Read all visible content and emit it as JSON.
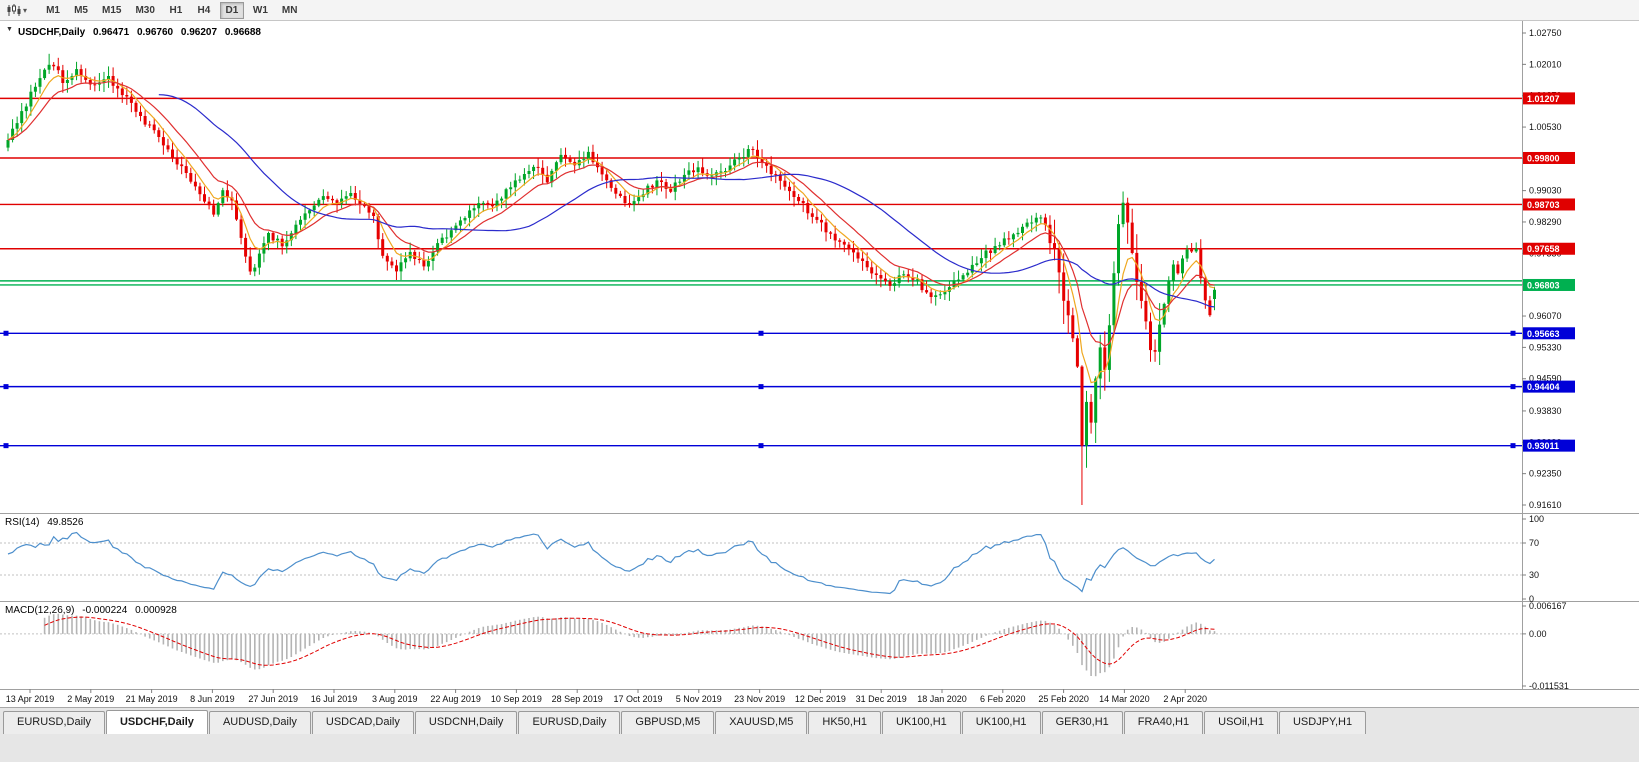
{
  "toolbar": {
    "chart_type_icon": "candlestick-chart-icon",
    "timeframes": [
      {
        "label": "M1",
        "active": false
      },
      {
        "label": "M5",
        "active": false
      },
      {
        "label": "M15",
        "active": false
      },
      {
        "label": "M30",
        "active": false
      },
      {
        "label": "H1",
        "active": false
      },
      {
        "label": "H4",
        "active": false
      },
      {
        "label": "D1",
        "active": true
      },
      {
        "label": "W1",
        "active": false
      },
      {
        "label": "MN",
        "active": false
      }
    ]
  },
  "chart": {
    "dropdown_arrow": "▼",
    "symbol_title": "USDCHF,Daily",
    "open": "0.96471",
    "high": "0.96760",
    "low": "0.96207",
    "close": "0.96688"
  },
  "rsi_panel": {
    "title": "RSI(14)",
    "value": "49.8526",
    "axis_labels": [
      "100",
      "70",
      "30",
      "0"
    ],
    "levels": [
      70,
      30
    ]
  },
  "macd_panel": {
    "title": "MACD(12,26,9)",
    "main_value": "-0.000224",
    "signal_value": "0.000928",
    "axis_labels": [
      "0.006167",
      "0.00",
      "-0.011531"
    ]
  },
  "chart_data": {
    "type": "candlestick",
    "symbol": "USDCHF",
    "timeframe": "Daily",
    "x_labels": [
      "13 Apr 2019",
      "2 May 2019",
      "21 May 2019",
      "8 Jun 2019",
      "27 Jun 2019",
      "16 Jul 2019",
      "3 Aug 2019",
      "22 Aug 2019",
      "10 Sep 2019",
      "28 Sep 2019",
      "17 Oct 2019",
      "5 Nov 2019",
      "23 Nov 2019",
      "12 Dec 2019",
      "31 Dec 2019",
      "18 Jan 2020",
      "6 Feb 2020",
      "25 Feb 2020",
      "14 Mar 2020",
      "2 Apr 2020"
    ],
    "y_axis_ticks": [
      "1.02750",
      "1.02010",
      "1.01270",
      "1.00530",
      "0.99790",
      "0.99030",
      "0.98290",
      "0.97550",
      "0.96810",
      "0.96070",
      "0.95330",
      "0.94590",
      "0.93830",
      "0.93090",
      "0.92350",
      "0.91610"
    ],
    "y_axis_range": [
      0.9161,
      1.0275
    ],
    "horizontal_levels": [
      {
        "price": 1.01207,
        "label": "1.01207",
        "color": "#e00000",
        "labeled": true,
        "handles": false
      },
      {
        "price": 0.998,
        "label": "0.99800",
        "color": "#e00000",
        "labeled": true,
        "handles": false
      },
      {
        "price": 0.98703,
        "label": "0.98703",
        "color": "#e00000",
        "labeled": true,
        "handles": false
      },
      {
        "price": 0.97658,
        "label": "0.97658",
        "color": "#e00000",
        "labeled": true,
        "handles": false
      },
      {
        "price": 0.969,
        "label": "",
        "color": "#00b050",
        "labeled": false,
        "handles": false
      },
      {
        "price": 0.96803,
        "label": "0.96803",
        "color": "#00b050",
        "labeled": true,
        "handles": false
      },
      {
        "price": 0.95663,
        "label": "0.95663",
        "color": "#0000d8",
        "labeled": true,
        "handles": true
      },
      {
        "price": 0.94404,
        "label": "0.94404",
        "color": "#0000d8",
        "labeled": true,
        "handles": true
      },
      {
        "price": 0.93011,
        "label": "0.93011",
        "color": "#0000d8",
        "labeled": true,
        "handles": true
      }
    ],
    "candle_count": 265,
    "close_path_anchors": [
      [
        0,
        1.003
      ],
      [
        3,
        1.009
      ],
      [
        6,
        1.015
      ],
      [
        9,
        1.0205
      ],
      [
        12,
        1.0165
      ],
      [
        15,
        1.019
      ],
      [
        18,
        1.015
      ],
      [
        22,
        1.0168
      ],
      [
        25,
        1.0132
      ],
      [
        27,
        1.0105
      ],
      [
        30,
        1.0065
      ],
      [
        33,
        1.003
      ],
      [
        36,
        0.9985
      ],
      [
        39,
        0.994
      ],
      [
        42,
        0.989
      ],
      [
        45,
        0.9852
      ],
      [
        47,
        0.9905
      ],
      [
        49,
        0.9878
      ],
      [
        51,
        0.979
      ],
      [
        53,
        0.9706
      ],
      [
        55,
        0.9748
      ],
      [
        57,
        0.98
      ],
      [
        60,
        0.9776
      ],
      [
        63,
        0.982
      ],
      [
        66,
        0.9858
      ],
      [
        69,
        0.9895
      ],
      [
        72,
        0.987
      ],
      [
        75,
        0.99
      ],
      [
        78,
        0.9862
      ],
      [
        80,
        0.9836
      ],
      [
        82,
        0.9752
      ],
      [
        85,
        0.9716
      ],
      [
        88,
        0.976
      ],
      [
        91,
        0.9722
      ],
      [
        94,
        0.9775
      ],
      [
        97,
        0.981
      ],
      [
        100,
        0.9845
      ],
      [
        103,
        0.988
      ],
      [
        106,
        0.9862
      ],
      [
        109,
        0.99
      ],
      [
        112,
        0.9935
      ],
      [
        115,
        0.9962
      ],
      [
        118,
        0.9926
      ],
      [
        121,
        0.9985
      ],
      [
        124,
        0.9958
      ],
      [
        127,
        0.9988
      ],
      [
        130,
        0.994
      ],
      [
        133,
        0.9896
      ],
      [
        136,
        0.9866
      ],
      [
        139,
        0.99
      ],
      [
        142,
        0.9925
      ],
      [
        145,
        0.9904
      ],
      [
        148,
        0.9938
      ],
      [
        151,
        0.996
      ],
      [
        154,
        0.9932
      ],
      [
        157,
        0.9956
      ],
      [
        160,
        0.9984
      ],
      [
        163,
        1.0
      ],
      [
        166,
        0.9958
      ],
      [
        169,
        0.993
      ],
      [
        172,
        0.9894
      ],
      [
        175,
        0.9856
      ],
      [
        178,
        0.9822
      ],
      [
        181,
        0.979
      ],
      [
        184,
        0.9762
      ],
      [
        187,
        0.9736
      ],
      [
        190,
        0.9702
      ],
      [
        193,
        0.9676
      ],
      [
        196,
        0.9712
      ],
      [
        199,
        0.9688
      ],
      [
        202,
        0.9648
      ],
      [
        205,
        0.9668
      ],
      [
        208,
        0.9692
      ],
      [
        211,
        0.9722
      ],
      [
        214,
        0.9755
      ],
      [
        217,
        0.9778
      ],
      [
        220,
        0.9798
      ],
      [
        223,
        0.9822
      ],
      [
        226,
        0.9842
      ],
      [
        228,
        0.9795
      ],
      [
        230,
        0.9718
      ],
      [
        231,
        0.9656
      ],
      [
        232,
        0.96
      ],
      [
        233,
        0.955
      ],
      [
        234,
        0.948
      ],
      [
        235,
        0.931
      ],
      [
        236,
        0.942
      ],
      [
        237,
        0.9362
      ],
      [
        238,
        0.945
      ],
      [
        239,
        0.953
      ],
      [
        240,
        0.9482
      ],
      [
        241,
        0.96
      ],
      [
        242,
        0.972
      ],
      [
        243,
        0.9812
      ],
      [
        244,
        0.988
      ],
      [
        245,
        0.984
      ],
      [
        246,
        0.9752
      ],
      [
        247,
        0.969
      ],
      [
        248,
        0.9632
      ],
      [
        249,
        0.9582
      ],
      [
        250,
        0.954
      ],
      [
        251,
        0.9526
      ],
      [
        252,
        0.958
      ],
      [
        253,
        0.964
      ],
      [
        254,
        0.969
      ],
      [
        255,
        0.973
      ],
      [
        256,
        0.9702
      ],
      [
        257,
        0.974
      ],
      [
        258,
        0.977
      ],
      [
        259,
        0.9756
      ],
      [
        260,
        0.9772
      ],
      [
        261,
        0.97
      ],
      [
        262,
        0.9642
      ],
      [
        263,
        0.9616
      ],
      [
        264,
        0.9669
      ]
    ],
    "forced_last_candle": {
      "open": 0.96471,
      "high": 0.9676,
      "low": 0.96207,
      "close": 0.96688
    },
    "forced_points": {
      "deep_low_index": 235,
      "deep_low": 0.9161,
      "spike_high_index": 244,
      "spike_high": 0.9901,
      "early_high_index": 9,
      "early_high": 1.0226
    },
    "moving_averages": [
      {
        "kind": "ema",
        "period": 6,
        "color": "#efa820"
      },
      {
        "kind": "ema",
        "period": 13,
        "color": "#e03030"
      },
      {
        "kind": "sma",
        "period": 34,
        "color": "#2b2bcc"
      }
    ],
    "colors": {
      "up": "#00a628",
      "down": "#e60000",
      "histogram": "#b4b4b4",
      "signal": "#e00000",
      "rsi_line": "#4d8fcc"
    }
  },
  "tabs": [
    {
      "label": "EURUSD,Daily",
      "active": false
    },
    {
      "label": "USDCHF,Daily",
      "active": true
    },
    {
      "label": "AUDUSD,Daily",
      "active": false
    },
    {
      "label": "USDCAD,Daily",
      "active": false
    },
    {
      "label": "USDCNH,Daily",
      "active": false
    },
    {
      "label": "EURUSD,Daily",
      "active": false
    },
    {
      "label": "GBPUSD,M5",
      "active": false
    },
    {
      "label": "XAUUSD,M5",
      "active": false
    },
    {
      "label": "HK50,H1",
      "active": false
    },
    {
      "label": "UK100,H1",
      "active": false
    },
    {
      "label": "UK100,H1",
      "active": false
    },
    {
      "label": "GER30,H1",
      "active": false
    },
    {
      "label": "FRA40,H1",
      "active": false
    },
    {
      "label": "USOil,H1",
      "active": false
    },
    {
      "label": "USDJPY,H1",
      "active": false
    }
  ]
}
